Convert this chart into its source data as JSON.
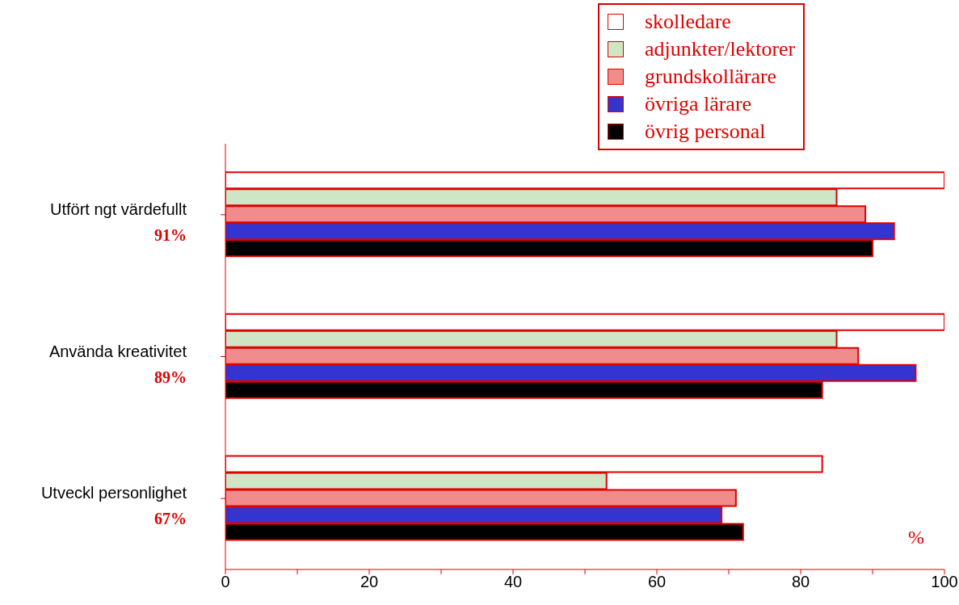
{
  "chart_data": {
    "type": "bar",
    "orientation": "horizontal",
    "categories": [
      "Utfört ngt värdefullt",
      "Använda kreativitet",
      "Utveckl personlighet"
    ],
    "series": [
      {
        "name": "skolledare",
        "color": "#ffffff",
        "values": [
          100,
          100,
          83
        ]
      },
      {
        "name": "adjunkter/lektorer",
        "color": "#cfe6c6",
        "values": [
          85,
          85,
          53
        ]
      },
      {
        "name": "grundskollärare",
        "color": "#f08c8c",
        "values": [
          89,
          88,
          71
        ]
      },
      {
        "name": "övriga lärare",
        "color": "#3434d0",
        "values": [
          93,
          96,
          69
        ]
      },
      {
        "name": "övrig personal",
        "color": "#000000",
        "values": [
          90,
          83,
          72
        ]
      }
    ],
    "xlim": [
      0,
      100
    ],
    "xticks": [
      0,
      {
        "value": 10,
        "label": null
      },
      20,
      {
        "value": 30,
        "label": null
      },
      40,
      {
        "value": 50,
        "label": null
      },
      60,
      {
        "value": 70,
        "label": null
      },
      80,
      {
        "value": 90,
        "label": null
      },
      100
    ],
    "xlabel": "%",
    "annotations": [
      "91%",
      "89%",
      "67%"
    ],
    "grid": false,
    "legend": "top right"
  }
}
